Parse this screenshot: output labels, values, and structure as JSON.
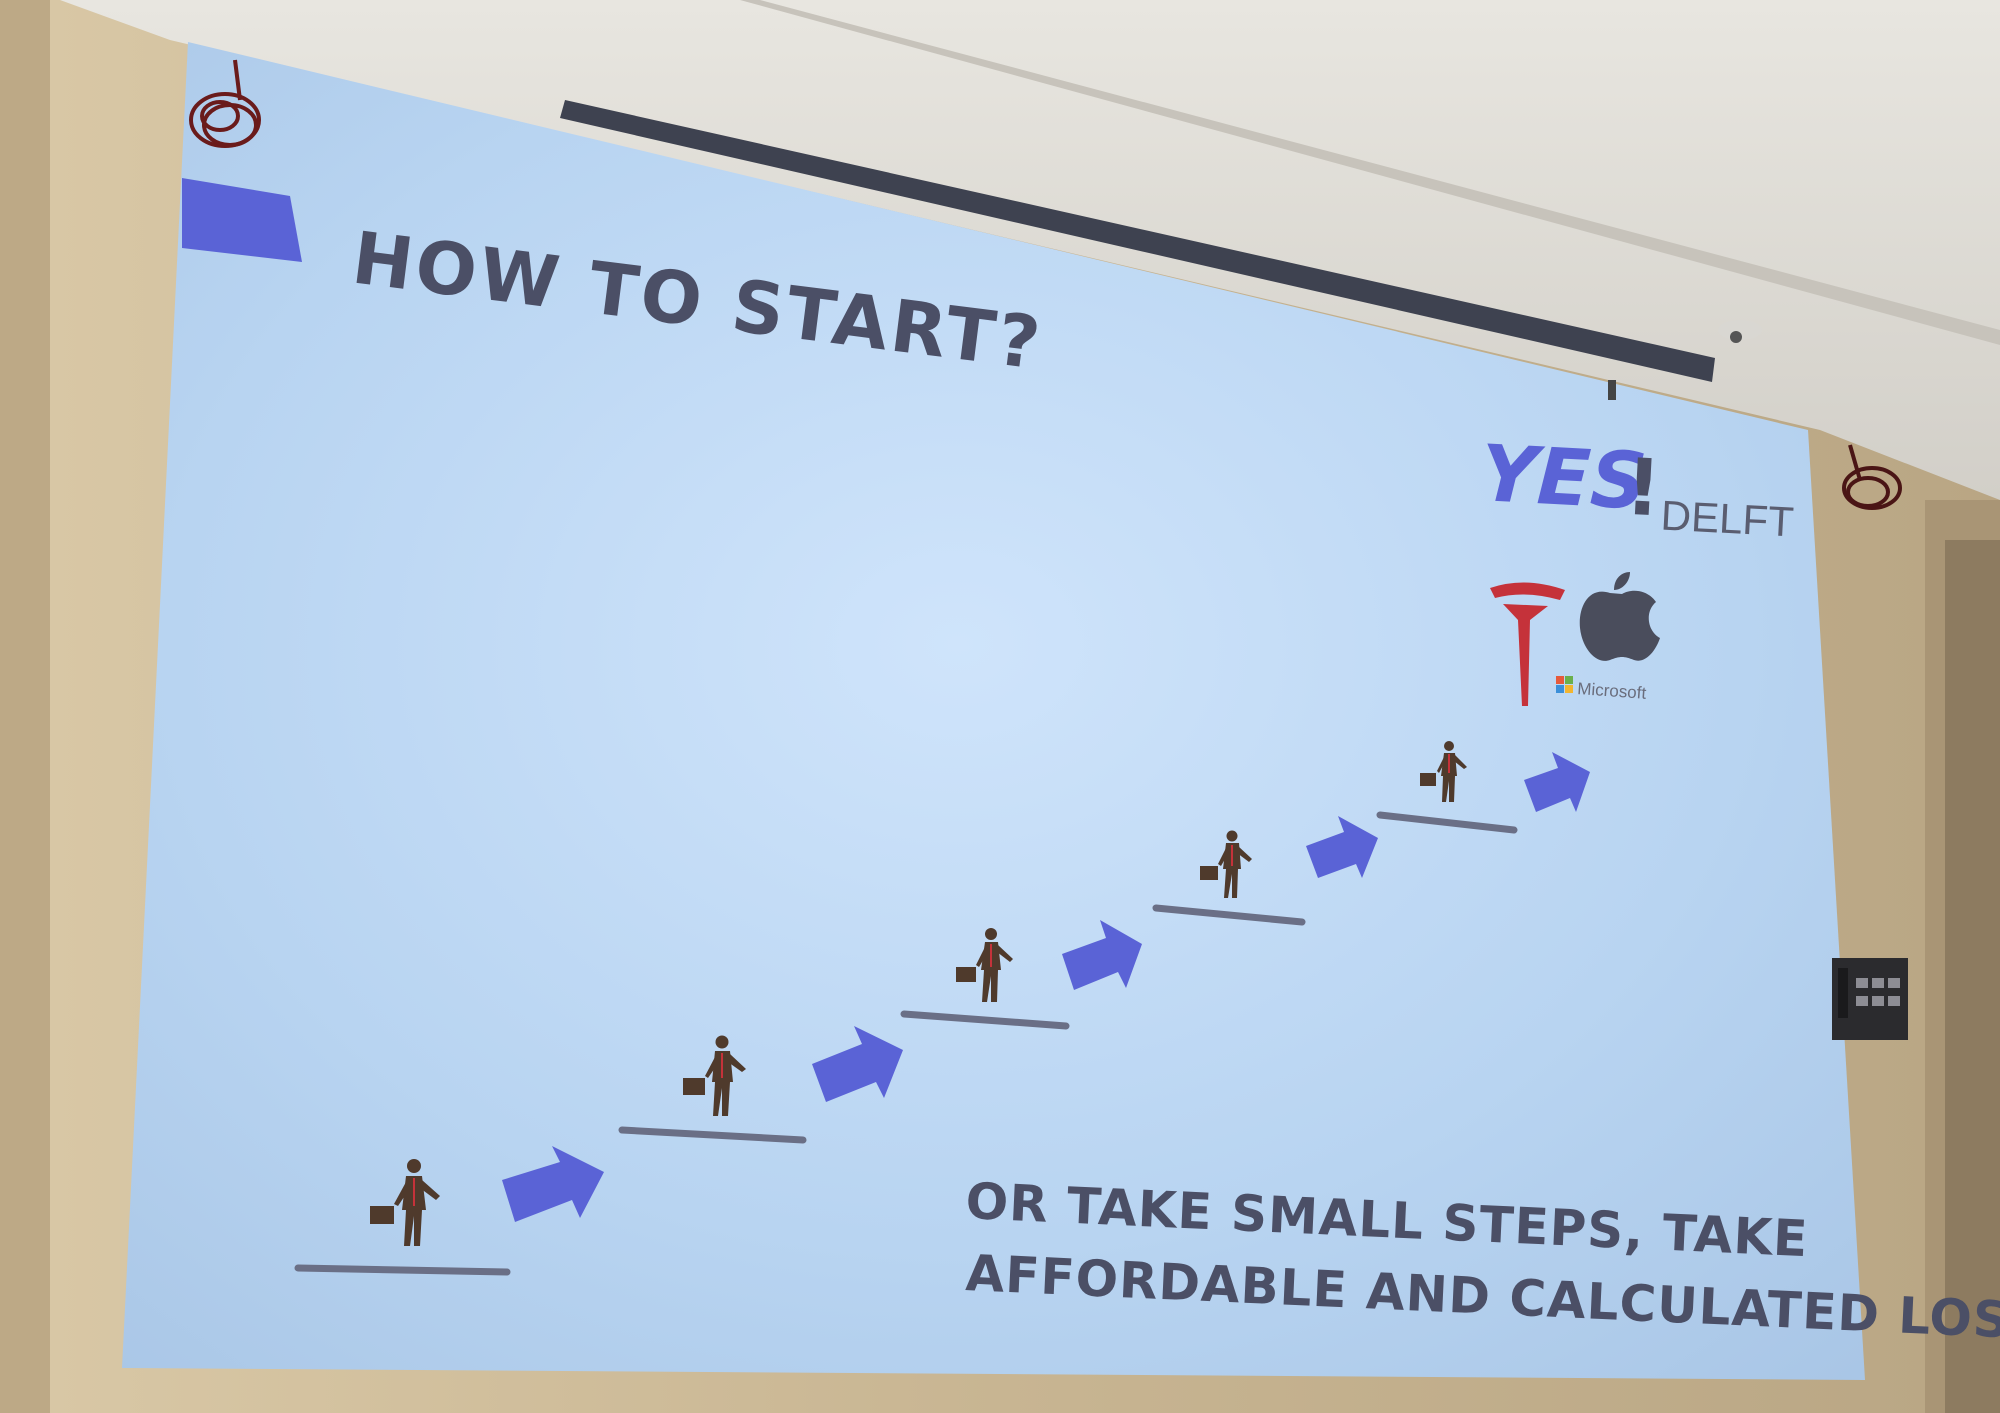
{
  "slide": {
    "title": "HOW TO START?",
    "caption_line1": "OR TAKE SMALL STEPS, TAKE",
    "caption_line2": "AFFORDABLE AND CALCULATED LOSSES?",
    "logo": {
      "yes": "YES",
      "bang": "!",
      "delft": "DELFT"
    },
    "company_logos": {
      "tesla": "tesla-logo",
      "apple": "apple-logo",
      "microsoft": "Microsoft"
    },
    "colors": {
      "title": "#4b4f66",
      "accent_blue": "#5a63d6",
      "step_line": "#6a6f86",
      "person": "#4f3a2c",
      "slide_bg": "#bcd6f2",
      "tesla_red": "#c5323a"
    }
  }
}
